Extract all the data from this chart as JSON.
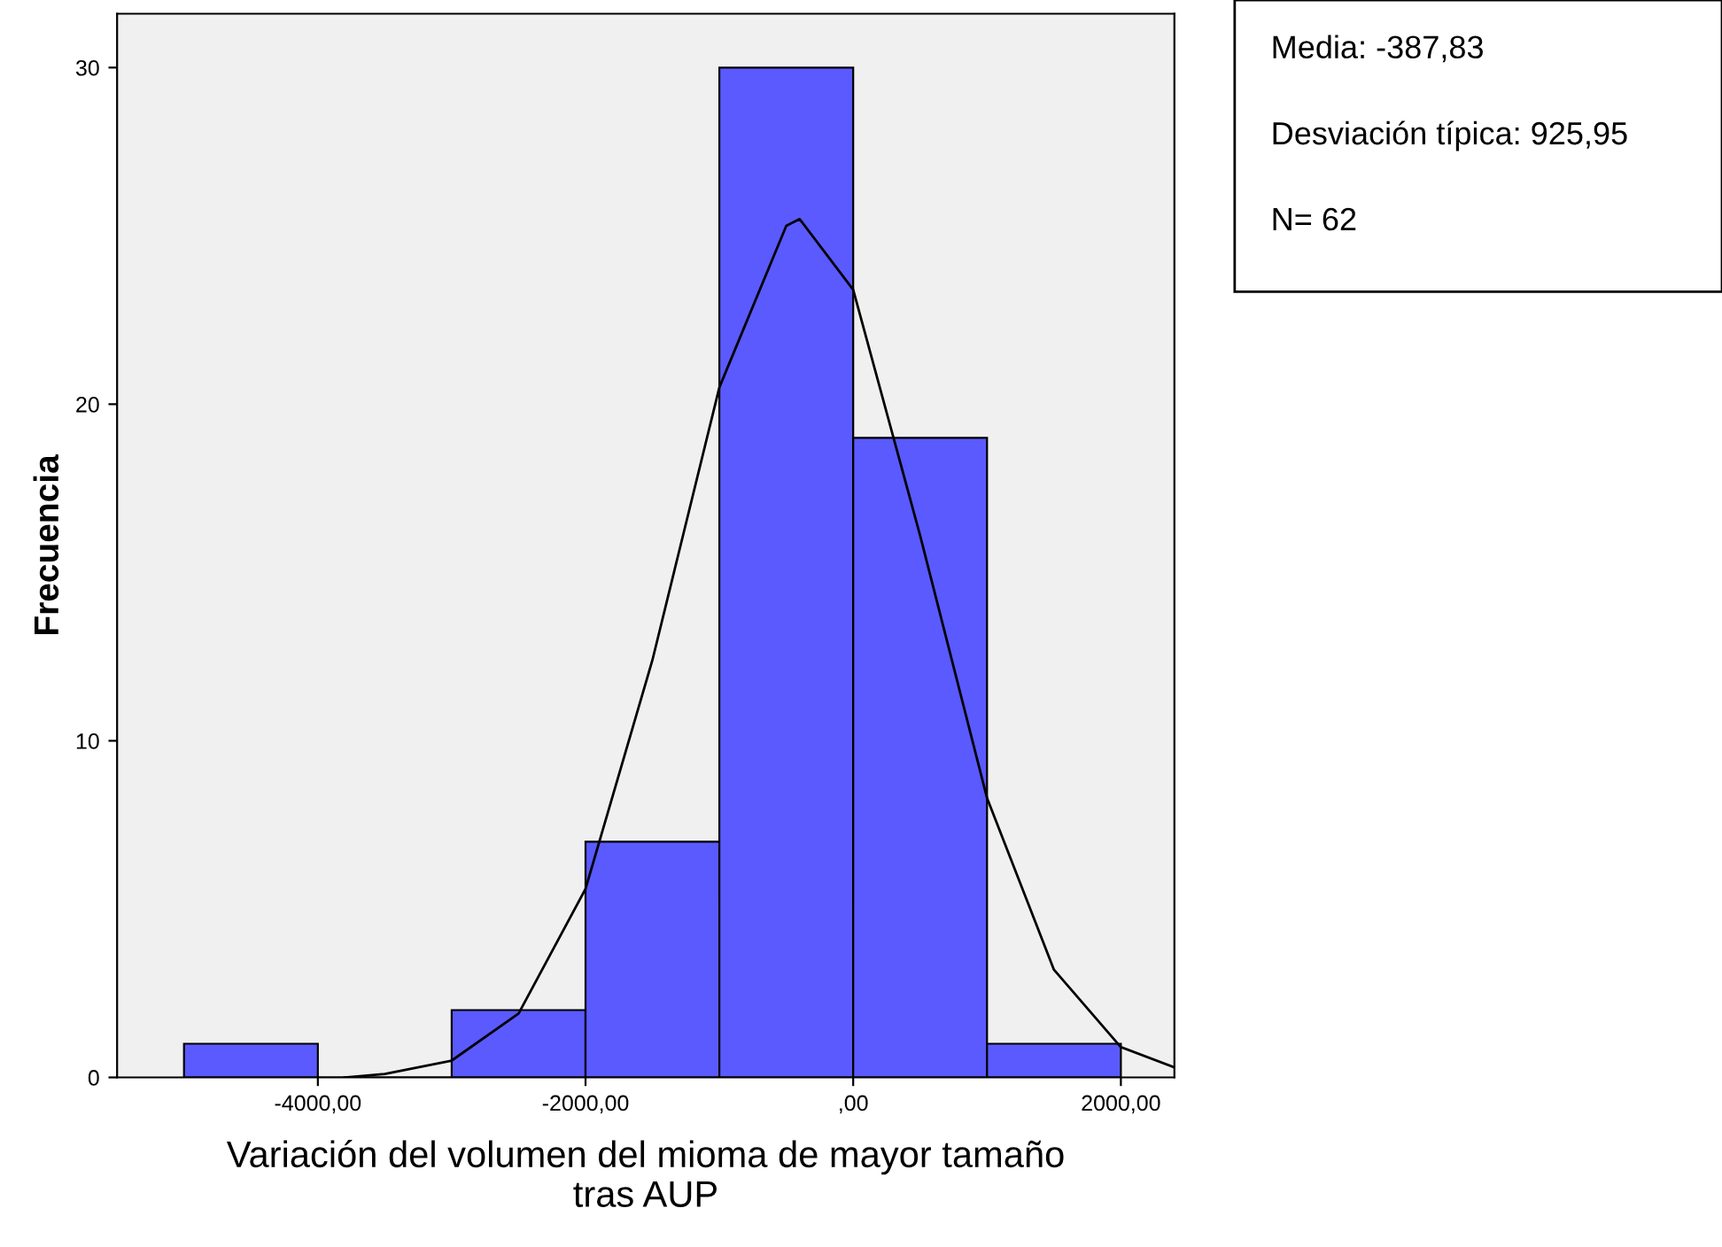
{
  "chart_data": {
    "type": "histogram",
    "xlabel": "Variación del volumen del mioma de mayor tamaño\ntras AUP",
    "ylabel": "Frecuencia",
    "series": [
      {
        "bins": [
          -5000,
          -4000,
          -3000,
          -2000,
          -1000,
          0,
          1000,
          2000
        ],
        "values": [
          1,
          0,
          2,
          7,
          30,
          19,
          1
        ],
        "color": "#5a5aff"
      },
      {
        "type": "line",
        "color": "#000000",
        "x": [
          -3800,
          -3500,
          -3000,
          -2500,
          -2000,
          -1500,
          -1000,
          -500,
          -400,
          0,
          500,
          1000,
          1500,
          2000,
          2400
        ],
        "values": [
          0,
          0.1,
          0.5,
          1.9,
          5.6,
          12.4,
          20.5,
          25.3,
          25.5,
          23.4,
          16.1,
          8.3,
          3.2,
          0.9,
          0.3
        ]
      }
    ],
    "xlim": [
      -5500,
      2400
    ],
    "ylim": [
      0,
      31.6
    ],
    "xticks": [
      {
        "value": -4000,
        "label": "-4000,00"
      },
      {
        "value": -2000,
        "label": "-2000,00"
      },
      {
        "value": 0,
        "label": ",00"
      },
      {
        "value": 2000,
        "label": "2000,00"
      }
    ],
    "yticks": [
      0,
      10,
      20,
      30
    ],
    "grid": false,
    "legend": false,
    "annotations": [
      "Media: -387,83",
      "Desviación típica: 925,95",
      "N= 62"
    ]
  }
}
